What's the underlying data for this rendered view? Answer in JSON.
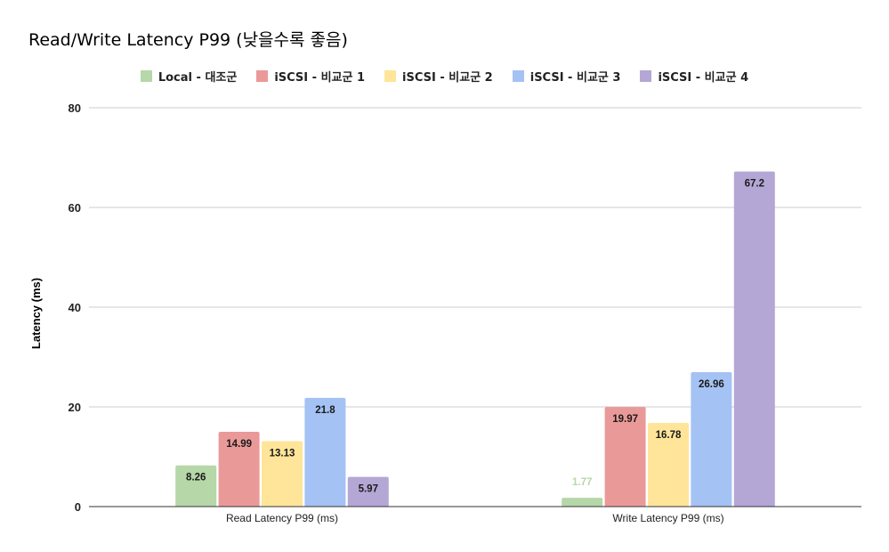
{
  "chart_data": {
    "type": "bar",
    "title": "Read/Write Latency P99 (낮을수록 좋음)",
    "xlabel": "",
    "ylabel": "Latency (ms)",
    "ylim": [
      0,
      80
    ],
    "yticks": [
      "0",
      "20",
      "40",
      "60",
      "80"
    ],
    "grid": true,
    "legend_position": "top",
    "categories": [
      "Read Latency P99 (ms)",
      "Write Latency P99 (ms)"
    ],
    "series": [
      {
        "name": "Local - 대조군",
        "color": "#b6d7a8",
        "values": [
          8.26,
          1.77
        ],
        "labels": [
          "8.26",
          "1.77"
        ]
      },
      {
        "name": "iSCSI - 비교군 1",
        "color": "#ea9999",
        "values": [
          14.99,
          19.97
        ],
        "labels": [
          "14.99",
          "19.97"
        ]
      },
      {
        "name": "iSCSI - 비교군 2",
        "color": "#ffe599",
        "values": [
          13.13,
          16.78
        ],
        "labels": [
          "13.13",
          "16.78"
        ]
      },
      {
        "name": "iSCSI - 비교군 3",
        "color": "#a4c2f4",
        "values": [
          21.8,
          26.96
        ],
        "labels": [
          "21.8",
          "26.96"
        ]
      },
      {
        "name": "iSCSI - 비교군 4",
        "color": "#b4a7d6",
        "values": [
          5.97,
          67.2
        ],
        "labels": [
          "5.97",
          "67.2"
        ]
      }
    ]
  }
}
